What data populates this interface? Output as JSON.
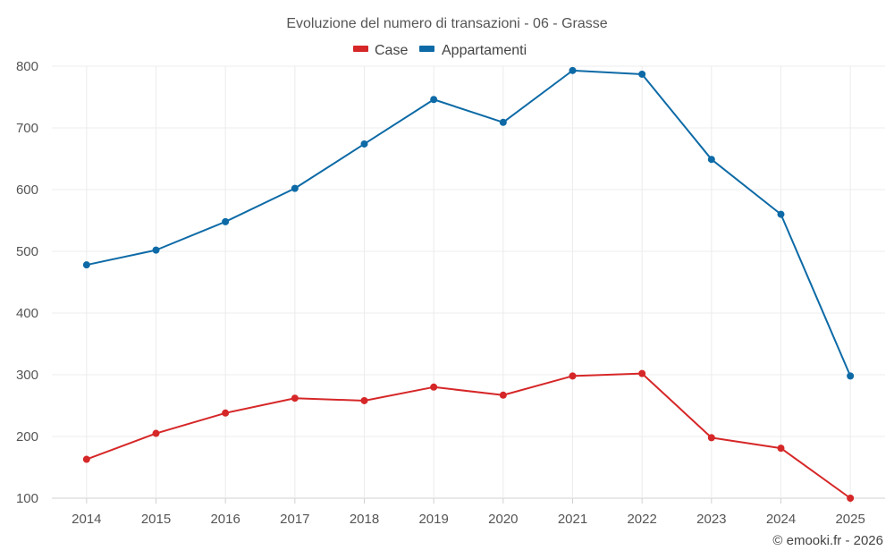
{
  "chart_data": {
    "type": "line",
    "title": "Evoluzione del numero di transazioni - 06 - Grasse",
    "categories": [
      "2014",
      "2015",
      "2016",
      "2017",
      "2018",
      "2019",
      "2020",
      "2021",
      "2022",
      "2023",
      "2024",
      "2025"
    ],
    "series": [
      {
        "name": "Case",
        "color": "#d62728",
        "values": [
          163,
          205,
          238,
          262,
          258,
          280,
          267,
          298,
          302,
          198,
          181,
          100
        ]
      },
      {
        "name": "Appartamenti",
        "color": "#0d6aa6",
        "values": [
          478,
          502,
          548,
          602,
          674,
          746,
          709,
          793,
          787,
          649,
          560,
          298
        ]
      }
    ],
    "ylim": [
      100,
      800
    ],
    "yticks": [
      100,
      200,
      300,
      400,
      500,
      600,
      700,
      800
    ],
    "xlabel": "",
    "ylabel": "",
    "grid": true,
    "legend": "top-center"
  },
  "credit": "© emooki.fr - 2026"
}
